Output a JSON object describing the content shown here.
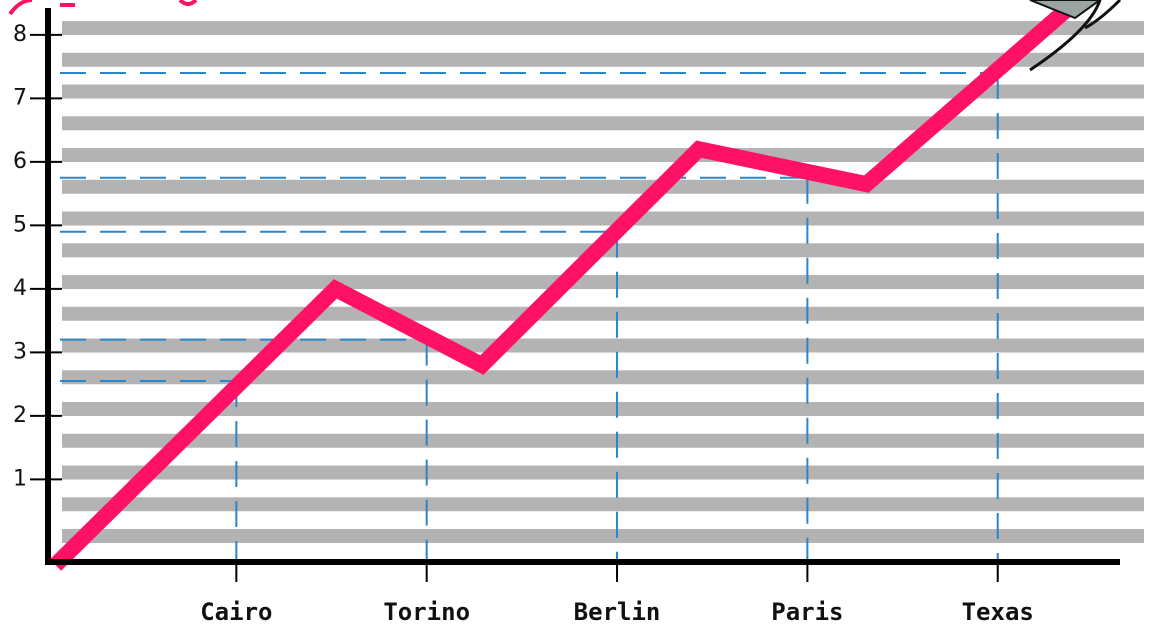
{
  "chart_data": {
    "type": "line",
    "categories": [
      {
        "value": 1,
        "label": "Cairo"
      },
      {
        "value": 2,
        "label": "Torino"
      },
      {
        "value": 3,
        "label": "Berlin"
      },
      {
        "value": 4,
        "label": "Paris"
      },
      {
        "value": 5,
        "label": "Texas"
      }
    ],
    "guide_values": [
      2.55,
      3.2,
      4.9,
      5.75,
      7.4
    ],
    "guide_color": "#2a86c8",
    "series": [
      {
        "color": "#ff1166",
        "x": [
          0.05,
          1.52,
          2.29,
          3.43,
          4.31,
          5.42
        ],
        "values": [
          -0.35,
          4.0,
          2.8,
          6.2,
          5.65,
          8.55
        ]
      }
    ],
    "xlim": [
      0,
      5.8
    ],
    "ylim": [
      -0.27,
      8.55
    ],
    "yticks": [
      1,
      2,
      3,
      4,
      5,
      6,
      7,
      8
    ],
    "stripes": true
  }
}
